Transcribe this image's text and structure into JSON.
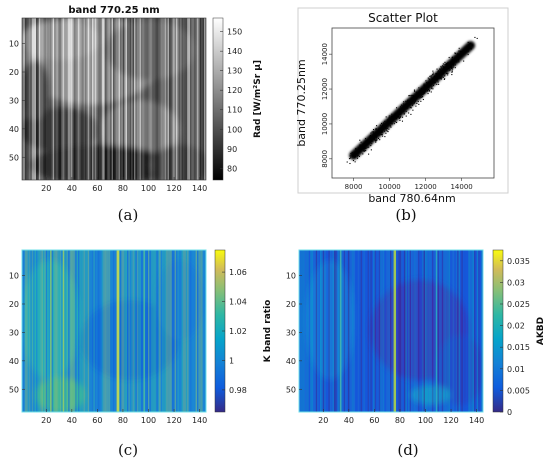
{
  "panel_labels": [
    "(a)",
    "(b)",
    "(c)",
    "(d)"
  ],
  "chart_data": [
    {
      "panel": "(a)",
      "type": "heatmap",
      "title": "band 770.25 nm",
      "xlabel": "",
      "ylabel": "",
      "xticks": [
        20,
        40,
        60,
        80,
        100,
        120,
        140
      ],
      "yticks": [
        10,
        20,
        30,
        40,
        50
      ],
      "xlim": [
        1,
        145
      ],
      "ylim": [
        1,
        58
      ],
      "colormap": "gray",
      "colorbar": {
        "label": "Rad [W/m²Sr μ]",
        "ticks": [
          "80",
          "90",
          "100",
          "110",
          "120",
          "130",
          "140",
          "150"
        ],
        "range": [
          74,
          157
        ]
      }
    },
    {
      "panel": "(b)",
      "type": "scatter",
      "title": "Scatter Plot",
      "xlabel": "band 780.64nm",
      "ylabel": "band 770.25nm",
      "xticks": [
        "8000",
        "10000",
        "12000",
        "14000"
      ],
      "yticks": [
        "8000",
        "10000",
        "12000",
        "14000"
      ],
      "xlim": [
        6800,
        15800
      ],
      "ylim": [
        6900,
        15500
      ],
      "trend": {
        "x": [
          7500,
          14800
        ],
        "y": [
          7700,
          14800
        ]
      },
      "marker_color": "#000000"
    },
    {
      "panel": "(c)",
      "type": "heatmap",
      "title": "",
      "xticks": [
        20,
        40,
        60,
        80,
        100,
        120,
        140
      ],
      "yticks": [
        10,
        20,
        30,
        40,
        50
      ],
      "xlim": [
        1,
        145
      ],
      "ylim": [
        1,
        58
      ],
      "colormap": "parula",
      "colorbar": {
        "label": "K band ratio",
        "ticks": [
          "0.98",
          "1",
          "1.02",
          "1.04",
          "1.06"
        ],
        "range": [
          0.965,
          1.075
        ]
      }
    },
    {
      "panel": "(d)",
      "type": "heatmap",
      "title": "",
      "xticks": [
        20,
        40,
        60,
        80,
        100,
        120,
        140
      ],
      "yticks": [
        10,
        20,
        30,
        40,
        50
      ],
      "xlim": [
        1,
        145
      ],
      "ylim": [
        1,
        58
      ],
      "colormap": "parula",
      "colorbar": {
        "label": "AKBD",
        "ticks": [
          "0",
          "0.005",
          "0.01",
          "0.015",
          "0.02",
          "0.025",
          "0.03",
          "0.035"
        ],
        "range": [
          0,
          0.0375
        ]
      }
    }
  ]
}
